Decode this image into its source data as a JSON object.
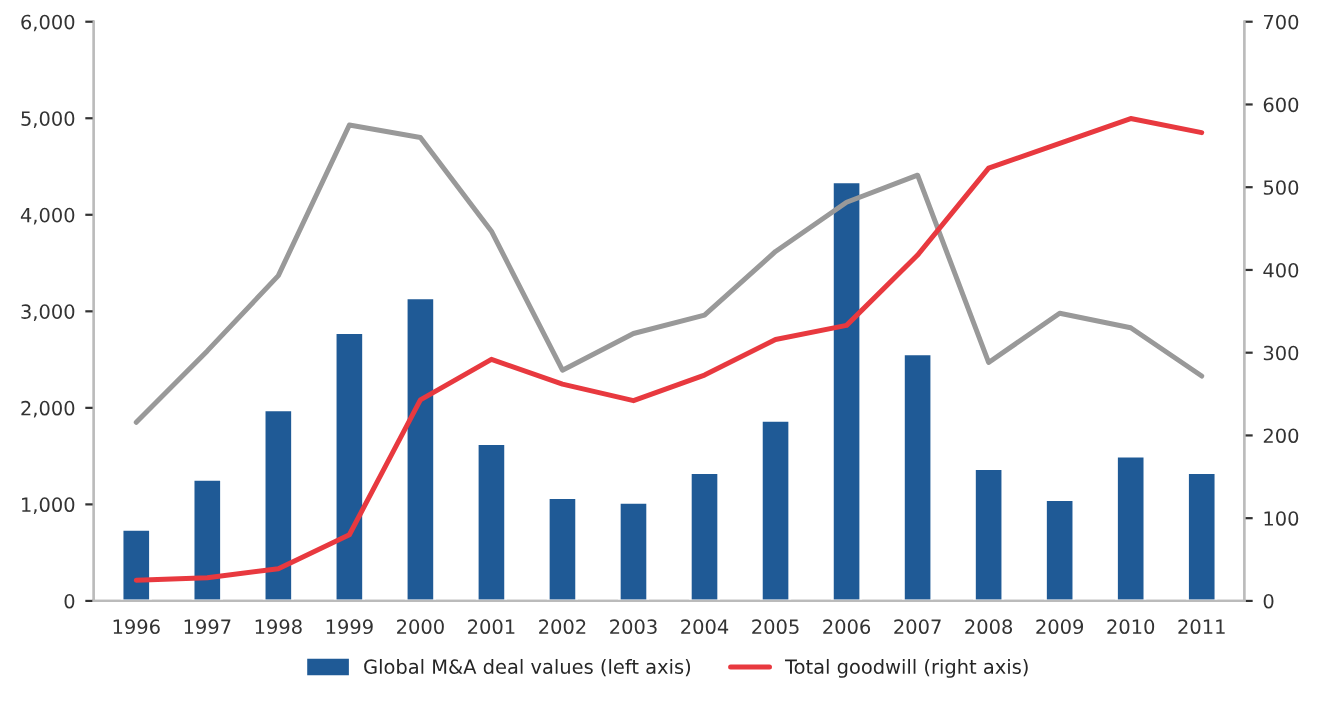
{
  "chart_data": {
    "type": "bar",
    "categories": [
      "1996",
      "1997",
      "1998",
      "1999",
      "2000",
      "2001",
      "2002",
      "2003",
      "2004",
      "2005",
      "2006",
      "2007",
      "2008",
      "2009",
      "2010",
      "2011"
    ],
    "series": [
      {
        "name": "Global M&A deal values (left axis)",
        "color": "#1f5a96",
        "values": [
          740,
          1260,
          1980,
          2780,
          3140,
          1630,
          1070,
          1020,
          1330,
          1870,
          4340,
          2560,
          1370,
          1050,
          1500,
          1330
        ]
      },
      {
        "type": "line",
        "color": "#999999",
        "values": [
          1850,
          2590,
          3370,
          4930,
          4800,
          3830,
          2390,
          2770,
          2960,
          3620,
          4130,
          4410,
          2470,
          2980,
          2830,
          2330
        ]
      },
      {
        "name": "Total goodwill (right axis)",
        "type": "line",
        "axis": "y2",
        "color": "#e8393f",
        "values": [
          25,
          28,
          39,
          80,
          243,
          292,
          262,
          242,
          273,
          316,
          333,
          418,
          523,
          553,
          583,
          566
        ]
      }
    ],
    "ylim": [
      0,
      6000
    ],
    "yticks": [
      0,
      {
        "value": 1000,
        "label": "1,000"
      },
      {
        "value": 2000,
        "label": "2,000"
      },
      {
        "value": 3000,
        "label": "3,000"
      },
      {
        "value": 4000,
        "label": "4,000"
      },
      {
        "value": 5000,
        "label": "5,000"
      },
      {
        "value": 6000,
        "label": "6,000"
      }
    ],
    "y2lim": [
      0,
      700
    ],
    "y2ticks": [
      0,
      100,
      200,
      300,
      400,
      500,
      600,
      700
    ],
    "legend": "bottom",
    "grid": false
  }
}
